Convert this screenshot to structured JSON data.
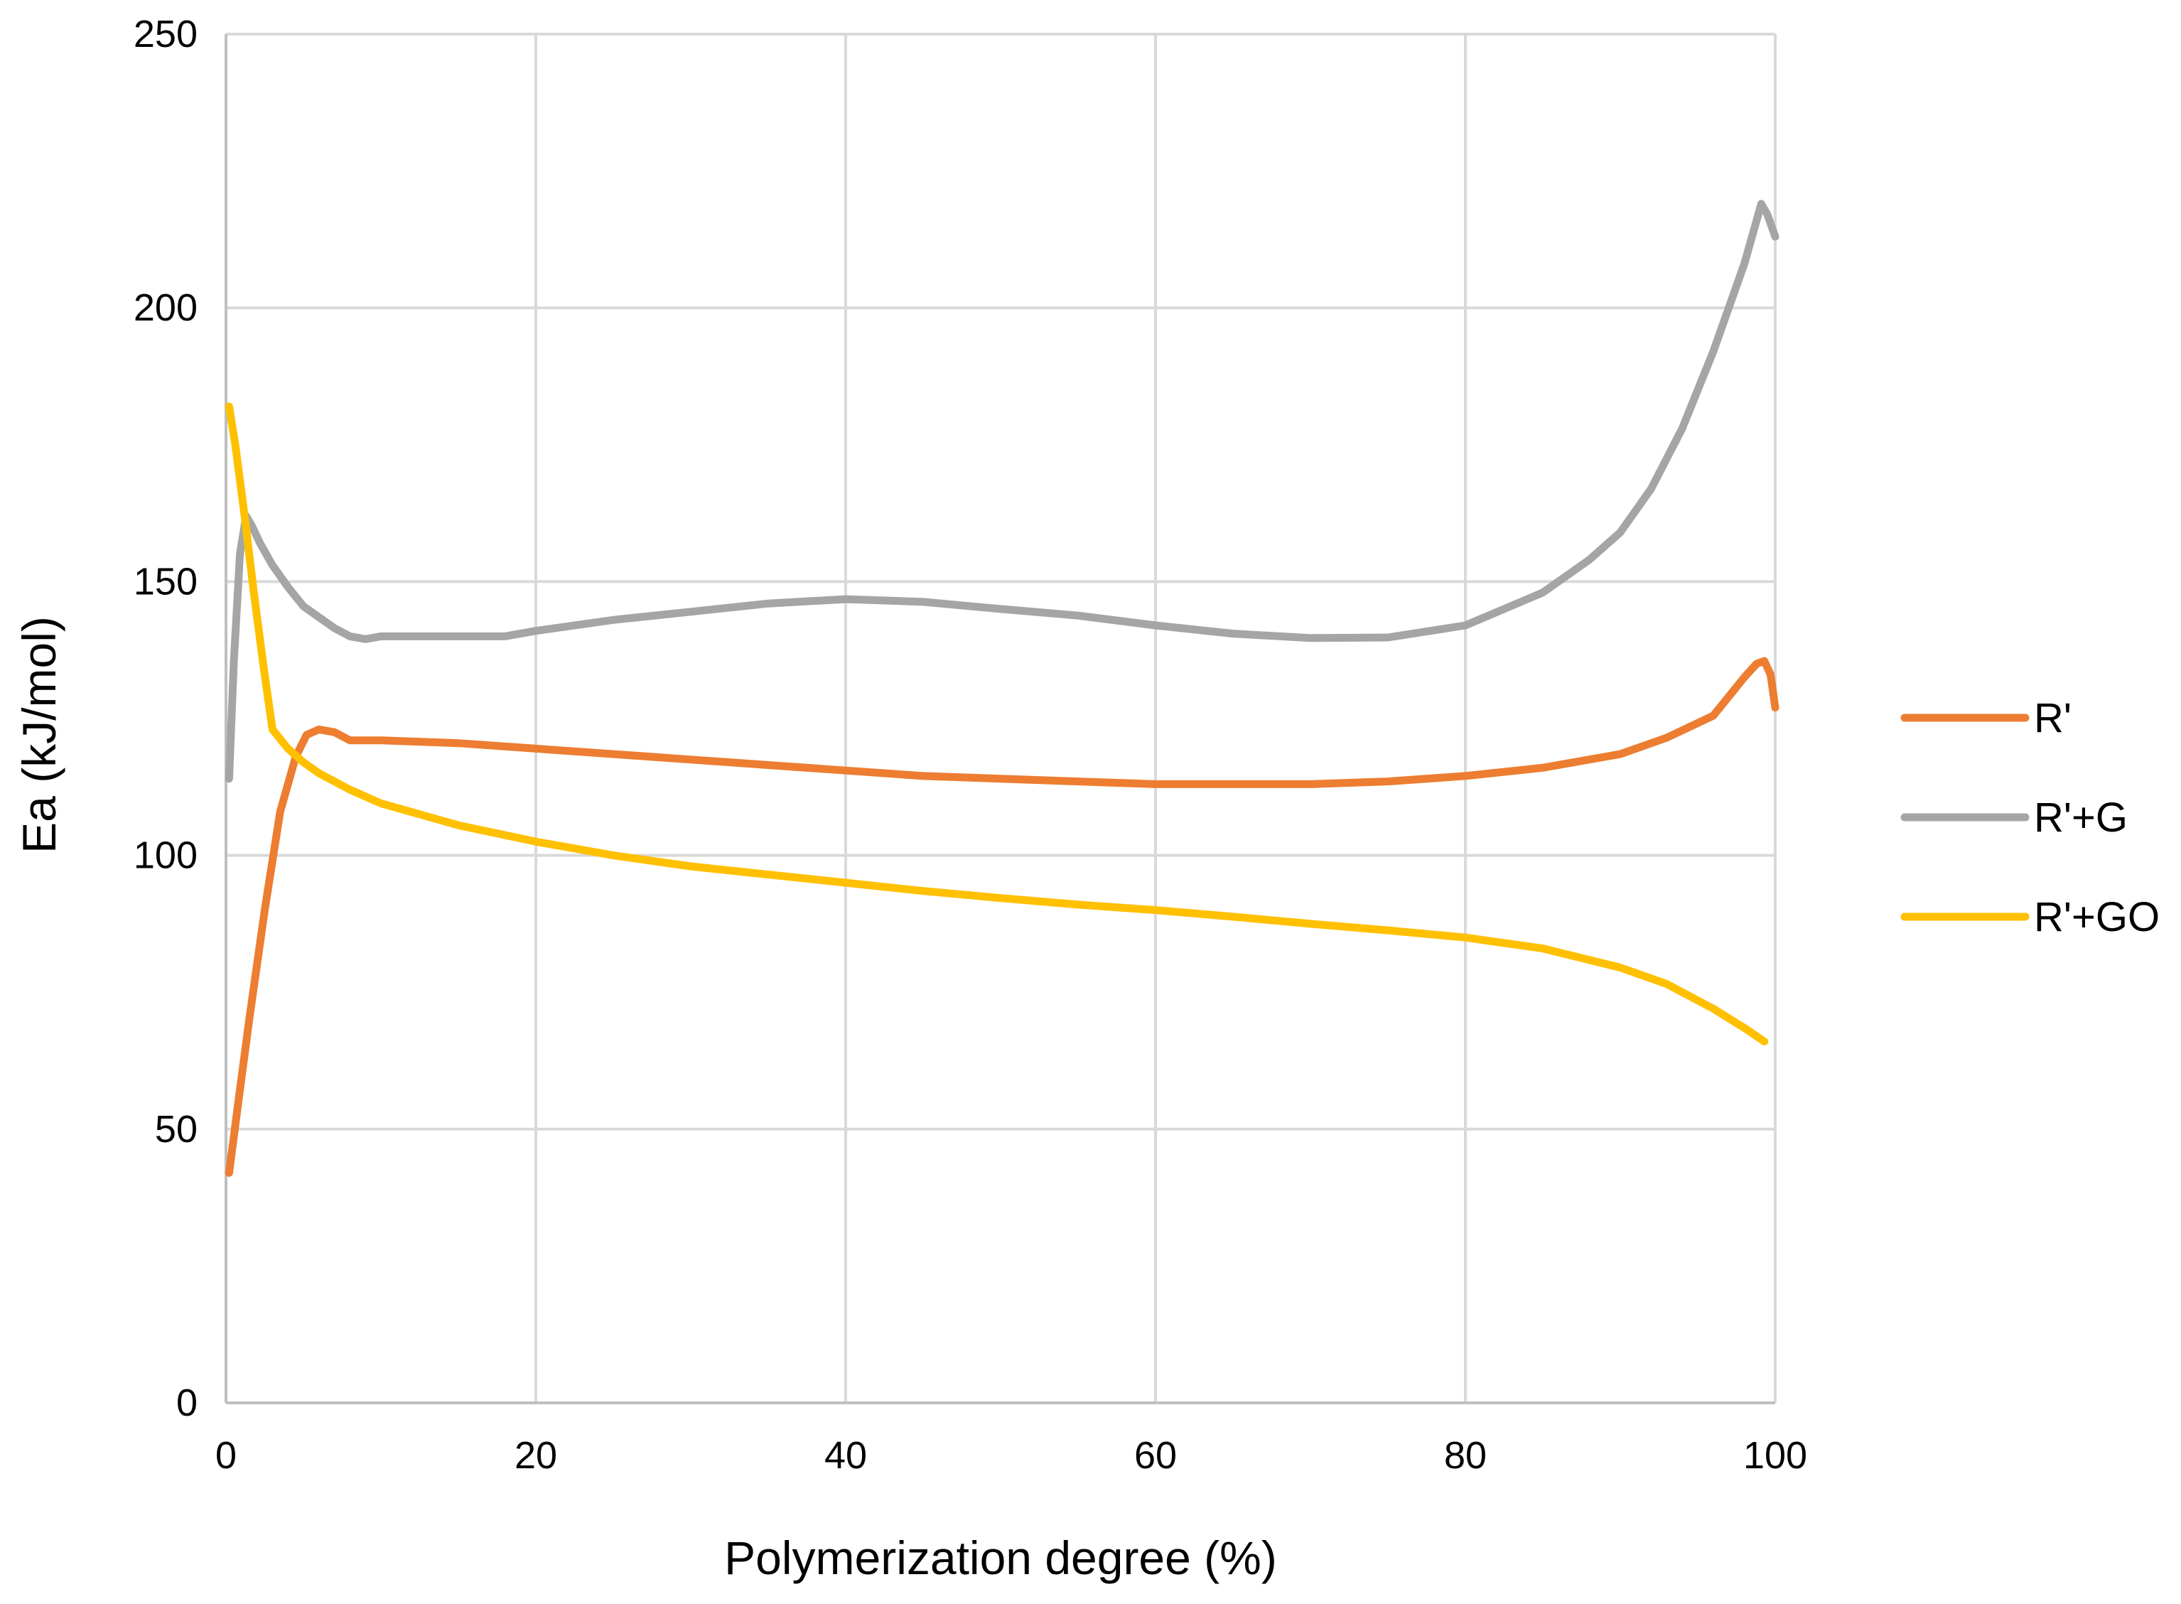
{
  "chart_data": {
    "type": "line",
    "title": "",
    "xlabel": "Polymerization degree (%)",
    "ylabel": "Ea (kJ/mol)",
    "xlim": [
      0,
      100
    ],
    "ylim": [
      0,
      250
    ],
    "xticks": [
      0,
      20,
      40,
      60,
      80,
      100
    ],
    "yticks": [
      0,
      50,
      100,
      150,
      200,
      250
    ],
    "grid": true,
    "legend_position": "right",
    "series": [
      {
        "name": "R'",
        "color": "#ED7D31",
        "points": [
          [
            0.2,
            42
          ],
          [
            0.8,
            55
          ],
          [
            1.5,
            70
          ],
          [
            2.5,
            90
          ],
          [
            3.5,
            108
          ],
          [
            4.5,
            118
          ],
          [
            5.2,
            122
          ],
          [
            6,
            123
          ],
          [
            7,
            122.5
          ],
          [
            8,
            121
          ],
          [
            10,
            121
          ],
          [
            15,
            120.5
          ],
          [
            20,
            119.5
          ],
          [
            25,
            118.5
          ],
          [
            30,
            117.5
          ],
          [
            35,
            116.5
          ],
          [
            40,
            115.5
          ],
          [
            45,
            114.5
          ],
          [
            50,
            114
          ],
          [
            55,
            113.5
          ],
          [
            60,
            113
          ],
          [
            65,
            113
          ],
          [
            70,
            113
          ],
          [
            75,
            113.5
          ],
          [
            80,
            114.5
          ],
          [
            85,
            116
          ],
          [
            90,
            118.5
          ],
          [
            93,
            121.5
          ],
          [
            96,
            125.5
          ],
          [
            97,
            129
          ],
          [
            98,
            132.5
          ],
          [
            98.8,
            135
          ],
          [
            99.3,
            135.5
          ],
          [
            99.7,
            133
          ],
          [
            100,
            127
          ]
        ]
      },
      {
        "name": "R'+G",
        "color": "#A5A5A5",
        "points": [
          [
            0.2,
            114
          ],
          [
            0.5,
            135
          ],
          [
            0.9,
            155
          ],
          [
            1.3,
            162
          ],
          [
            1.7,
            160
          ],
          [
            2.2,
            157
          ],
          [
            3,
            153
          ],
          [
            4,
            149
          ],
          [
            5,
            145.5
          ],
          [
            6,
            143.5
          ],
          [
            7,
            141.5
          ],
          [
            8,
            140
          ],
          [
            9,
            139.5
          ],
          [
            10,
            140
          ],
          [
            15,
            140
          ],
          [
            18,
            140
          ],
          [
            20,
            141
          ],
          [
            25,
            143
          ],
          [
            30,
            144.5
          ],
          [
            35,
            146
          ],
          [
            40,
            146.8
          ],
          [
            45,
            146.3
          ],
          [
            50,
            145
          ],
          [
            55,
            143.8
          ],
          [
            60,
            142
          ],
          [
            65,
            140.5
          ],
          [
            70,
            139.7
          ],
          [
            75,
            139.8
          ],
          [
            80,
            142
          ],
          [
            85,
            148
          ],
          [
            88,
            154
          ],
          [
            90,
            159
          ],
          [
            92,
            167
          ],
          [
            94,
            178
          ],
          [
            96,
            192
          ],
          [
            98,
            208
          ],
          [
            98.7,
            215
          ],
          [
            99.1,
            219
          ],
          [
            99.5,
            217
          ],
          [
            100,
            213
          ]
        ]
      },
      {
        "name": "R'+GO",
        "color": "#FFC000",
        "points": [
          [
            0.2,
            182
          ],
          [
            0.6,
            175
          ],
          [
            1.2,
            162
          ],
          [
            1.8,
            148
          ],
          [
            2.4,
            135
          ],
          [
            3,
            123
          ],
          [
            4,
            119.5
          ],
          [
            5,
            117
          ],
          [
            6,
            115
          ],
          [
            8,
            112
          ],
          [
            10,
            109.5
          ],
          [
            15,
            105.5
          ],
          [
            20,
            102.5
          ],
          [
            25,
            100
          ],
          [
            30,
            98
          ],
          [
            35,
            96.5
          ],
          [
            40,
            95
          ],
          [
            45,
            93.5
          ],
          [
            50,
            92.2
          ],
          [
            55,
            91
          ],
          [
            60,
            90
          ],
          [
            65,
            88.8
          ],
          [
            70,
            87.5
          ],
          [
            75,
            86.3
          ],
          [
            80,
            85
          ],
          [
            85,
            83
          ],
          [
            90,
            79.5
          ],
          [
            93,
            76.5
          ],
          [
            96,
            72
          ],
          [
            98,
            68.5
          ],
          [
            99.3,
            66
          ]
        ]
      }
    ]
  }
}
